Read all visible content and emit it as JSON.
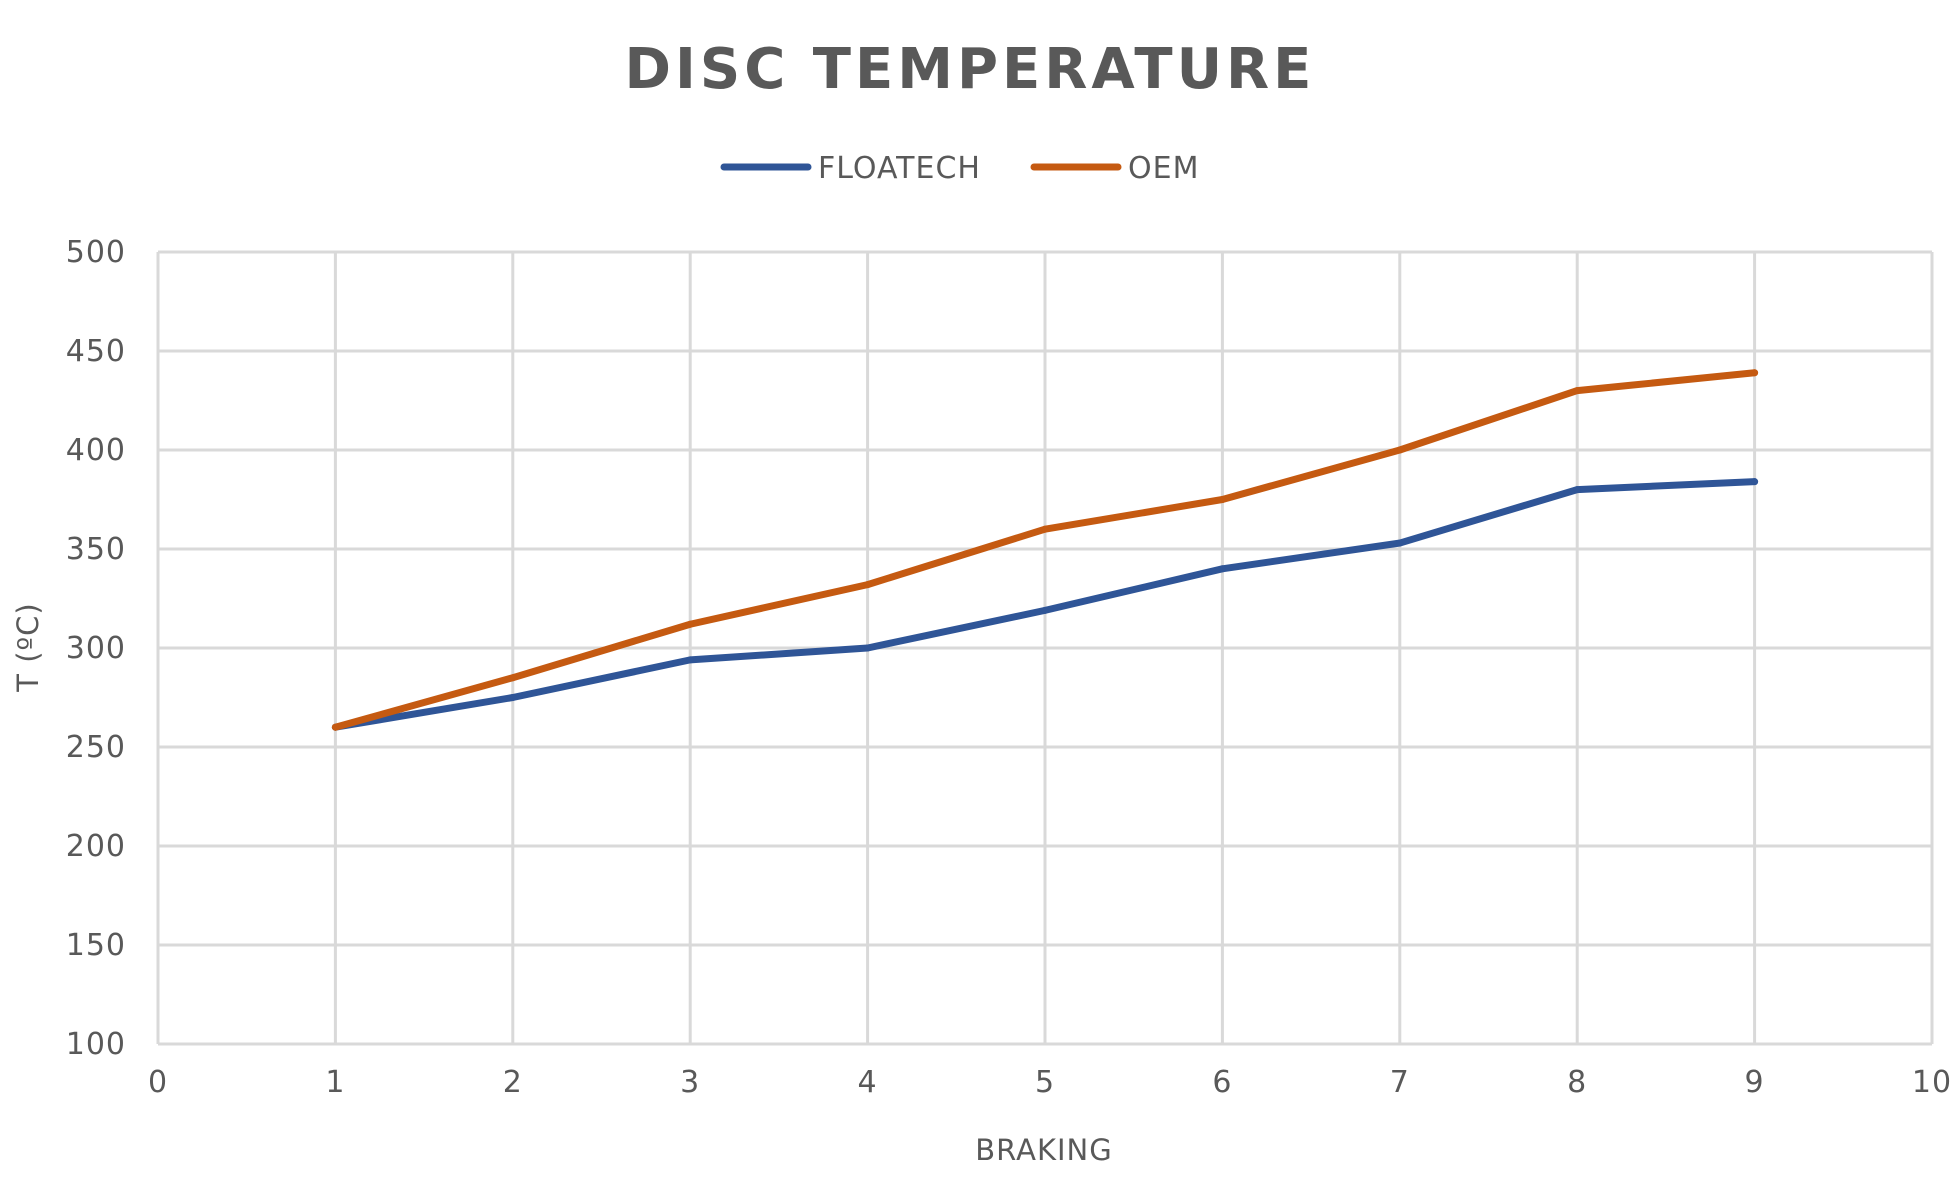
{
  "chart_data": {
    "type": "line",
    "title": "DISC TEMPERATURE",
    "xlabel": "BRAKING",
    "ylabel": "T (ºC)",
    "xlim": [
      0,
      10
    ],
    "ylim": [
      100,
      500
    ],
    "x_ticks": [
      0,
      1,
      2,
      3,
      4,
      5,
      6,
      7,
      8,
      9,
      10
    ],
    "y_ticks": [
      100,
      150,
      200,
      250,
      300,
      350,
      400,
      450,
      500
    ],
    "grid": true,
    "legend_position": "top-center",
    "x": [
      1,
      2,
      3,
      4,
      5,
      6,
      7,
      8,
      9
    ],
    "series": [
      {
        "name": "FLOATECH",
        "color": "#2f5597",
        "values": [
          260,
          275,
          294,
          300,
          319,
          340,
          353,
          380,
          384
        ]
      },
      {
        "name": "OEM",
        "color": "#c55a11",
        "values": [
          260,
          285,
          312,
          332,
          360,
          375,
          400,
          430,
          439
        ]
      }
    ]
  }
}
